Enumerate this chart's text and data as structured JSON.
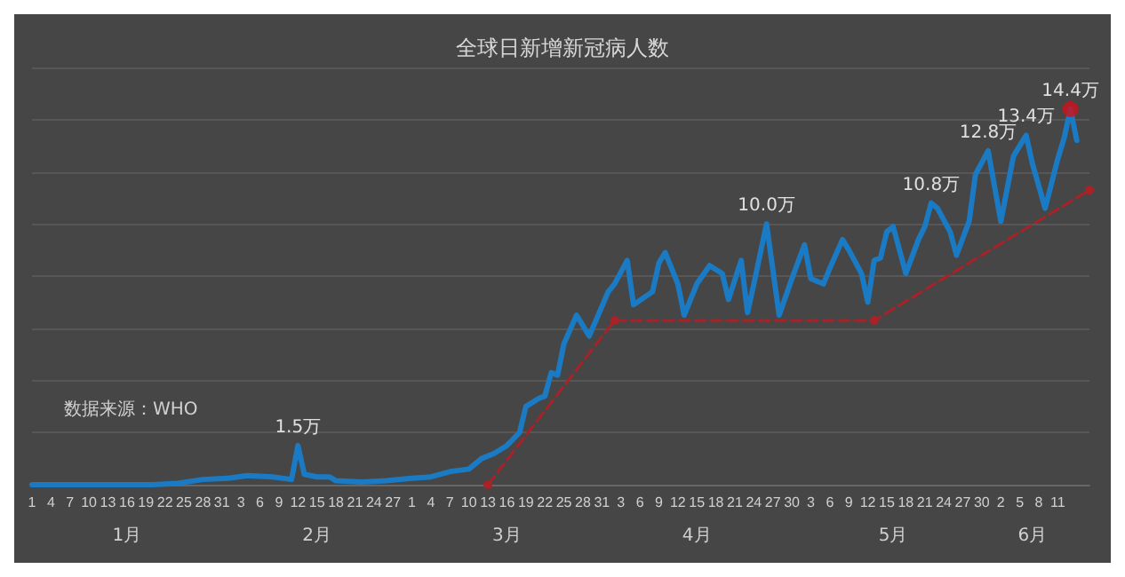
{
  "chart_data": {
    "type": "line",
    "title": "全球日新增新冠病人数",
    "annotations": [
      "数据来源：WHO"
    ],
    "x2lim": [
      "--01-01",
      "--06-16"
    ],
    "x2ticks": [
      {
        "value": "--01-16",
        "label": "1月"
      },
      {
        "value": "--02-15",
        "label": "2月"
      },
      {
        "value": "--03-16",
        "label": "3月"
      },
      {
        "value": "--04-15",
        "label": "4月"
      },
      {
        "value": "--05-16",
        "label": "5月"
      },
      {
        "value": "--06-07",
        "label": "6月"
      }
    ],
    "xlim": [
      "--01-01",
      "--06-16"
    ],
    "xticks": [
      {
        "value": "--01-01",
        "label": "1"
      },
      {
        "value": "--01-04",
        "label": "4"
      },
      {
        "value": "--01-07",
        "label": "7"
      },
      {
        "value": "--01-10",
        "label": "10"
      },
      {
        "value": "--01-13",
        "label": "13"
      },
      {
        "value": "--01-16",
        "label": "16"
      },
      {
        "value": "--01-19",
        "label": "19"
      },
      {
        "value": "--01-22",
        "label": "22"
      },
      {
        "value": "--01-25",
        "label": "25"
      },
      {
        "value": "--01-28",
        "label": "28"
      },
      {
        "value": "--01-31",
        "label": "31"
      },
      {
        "value": "--02-03",
        "label": "3"
      },
      {
        "value": "--02-06",
        "label": "6"
      },
      {
        "value": "--02-09",
        "label": "9"
      },
      {
        "value": "--02-12",
        "label": "12"
      },
      {
        "value": "--02-15",
        "label": "15"
      },
      {
        "value": "--02-18",
        "label": "18"
      },
      {
        "value": "--02-21",
        "label": "21"
      },
      {
        "value": "--02-24",
        "label": "24"
      },
      {
        "value": "--02-27",
        "label": "27"
      },
      {
        "value": "--03-01",
        "label": "1"
      },
      {
        "value": "--03-04",
        "label": "4"
      },
      {
        "value": "--03-07",
        "label": "7"
      },
      {
        "value": "--03-10",
        "label": "10"
      },
      {
        "value": "--03-13",
        "label": "13"
      },
      {
        "value": "--03-16",
        "label": "16"
      },
      {
        "value": "--03-19",
        "label": "19"
      },
      {
        "value": "--03-22",
        "label": "22"
      },
      {
        "value": "--03-25",
        "label": "25"
      },
      {
        "value": "--03-28",
        "label": "28"
      },
      {
        "value": "--03-31",
        "label": "31"
      },
      {
        "value": "--04-03",
        "label": "3"
      },
      {
        "value": "--04-06",
        "label": "6"
      },
      {
        "value": "--04-09",
        "label": "9"
      },
      {
        "value": "--04-12",
        "label": "12"
      },
      {
        "value": "--04-15",
        "label": "15"
      },
      {
        "value": "--04-18",
        "label": "18"
      },
      {
        "value": "--04-21",
        "label": "21"
      },
      {
        "value": "--04-24",
        "label": "24"
      },
      {
        "value": "--04-27",
        "label": "27"
      },
      {
        "value": "--04-30",
        "label": "30"
      },
      {
        "value": "--05-03",
        "label": "3"
      },
      {
        "value": "--05-06",
        "label": "6"
      },
      {
        "value": "--05-09",
        "label": "9"
      },
      {
        "value": "--05-12",
        "label": "12"
      },
      {
        "value": "--05-15",
        "label": "15"
      },
      {
        "value": "--05-18",
        "label": "18"
      },
      {
        "value": "--05-21",
        "label": "21"
      },
      {
        "value": "--05-24",
        "label": "24"
      },
      {
        "value": "--05-27",
        "label": "27"
      },
      {
        "value": "--05-30",
        "label": "30"
      },
      {
        "value": "--06-02",
        "label": "2"
      },
      {
        "value": "--06-05",
        "label": "5"
      },
      {
        "value": "--06-08",
        "label": "8"
      },
      {
        "value": "--06-11",
        "label": "11"
      }
    ],
    "ylim": [
      0,
      16
    ],
    "yticks": [
      {
        "value": 0,
        "label": null
      },
      {
        "value": 2,
        "label": null
      },
      {
        "value": 4,
        "label": null
      },
      {
        "value": 6,
        "label": null
      },
      {
        "value": 8,
        "label": null
      },
      {
        "value": 10,
        "label": null
      },
      {
        "value": 12,
        "label": null
      },
      {
        "value": 14,
        "label": null
      },
      {
        "value": 16,
        "label": null
      }
    ],
    "tick_labels": "x",
    "grid": "y",
    "series": [
      {
        "color": "#1a7bc4",
        "marker": "none",
        "line_style": "solid",
        "x": [
          "--01-01",
          "--01-10",
          "--01-20",
          "--01-24",
          "--01-28",
          "--02-01",
          "--02-04",
          "--02-08",
          "--02-11",
          "--02-12",
          "--02-13",
          "--02-15",
          "--02-17",
          "--02-18",
          "--02-22",
          "--02-26",
          "--03-01",
          "--03-04",
          "--03-07",
          "--03-10",
          "--03-12",
          "--03-14",
          "--03-16",
          "--03-18",
          "--03-19",
          "--03-21",
          "--03-22",
          "--03-23",
          "--03-24",
          "--03-25",
          "--03-27",
          "--03-29",
          "--04-01",
          "--04-02",
          "--04-04",
          "--04-05",
          "--04-08",
          "--04-09",
          "--04-10",
          "--04-12",
          "--04-13",
          "--04-15",
          "--04-17",
          "--04-19",
          "--04-20",
          "--04-22",
          "--04-23",
          "--04-24",
          "--04-26",
          "--04-28",
          "--04-30",
          "--05-02",
          "--05-03",
          "--05-05",
          "--05-06",
          "--05-08",
          "--05-09",
          "--05-11",
          "--05-12",
          "--05-13",
          "--05-14",
          "--05-15",
          "--05-16",
          "--05-18",
          "--05-20",
          "--05-21",
          "--05-22",
          "--05-23",
          "--05-25",
          "--05-26",
          "--05-28",
          "--05-29",
          "--05-31",
          "--06-02",
          "--06-04",
          "--06-06",
          "--06-07",
          "--06-09",
          "--06-11",
          "--06-12",
          "--06-13",
          "--06-14"
        ],
        "values": [
          0.0,
          0.0,
          0.0,
          0.05,
          0.2,
          0.25,
          0.35,
          0.3,
          0.2,
          1.5,
          0.4,
          0.3,
          0.3,
          0.15,
          0.1,
          0.15,
          0.25,
          0.3,
          0.5,
          0.6,
          1.0,
          1.2,
          1.5,
          2.0,
          3.0,
          3.3,
          3.4,
          4.3,
          4.2,
          5.4,
          6.5,
          5.7,
          7.4,
          7.7,
          8.6,
          6.9,
          7.4,
          8.5,
          8.9,
          7.7,
          6.5,
          7.7,
          8.4,
          8.1,
          7.1,
          8.6,
          6.6,
          7.7,
          10.0,
          6.5,
          7.9,
          9.2,
          7.9,
          7.7,
          8.3,
          9.4,
          9.0,
          8.1,
          7.0,
          8.6,
          8.7,
          9.7,
          9.9,
          8.1,
          9.4,
          9.9,
          10.8,
          10.6,
          9.7,
          8.8,
          10.1,
          11.9,
          12.8,
          10.1,
          12.6,
          13.4,
          12.3,
          10.6,
          12.5,
          13.3,
          14.4,
          13.2
        ],
        "value_labels": [
          null,
          null,
          null,
          null,
          null,
          null,
          null,
          null,
          null,
          "1.5万",
          null,
          null,
          null,
          null,
          null,
          null,
          null,
          null,
          null,
          null,
          null,
          null,
          null,
          null,
          null,
          null,
          null,
          null,
          null,
          null,
          null,
          null,
          null,
          null,
          null,
          null,
          null,
          null,
          null,
          null,
          null,
          null,
          null,
          null,
          null,
          null,
          null,
          null,
          "10.0万",
          null,
          null,
          null,
          null,
          null,
          null,
          null,
          null,
          null,
          null,
          null,
          null,
          null,
          null,
          null,
          null,
          null,
          "10.8万",
          null,
          null,
          null,
          null,
          null,
          "12.8万",
          null,
          null,
          "13.4万",
          null,
          null,
          null,
          null,
          "14.4万",
          null
        ]
      },
      {
        "type": "line",
        "color": "#a82228",
        "marker": "circle",
        "line_style": "dashed",
        "x": [
          "--03-13",
          "--04-02",
          "--05-13",
          "--06-16"
        ],
        "values": [
          0,
          6.3,
          6.3,
          11.3
        ]
      },
      {
        "type": "scatter",
        "color": "#d0121a",
        "marker": "circle",
        "x": [
          "--06-13"
        ],
        "values": [
          14.4
        ]
      }
    ]
  }
}
